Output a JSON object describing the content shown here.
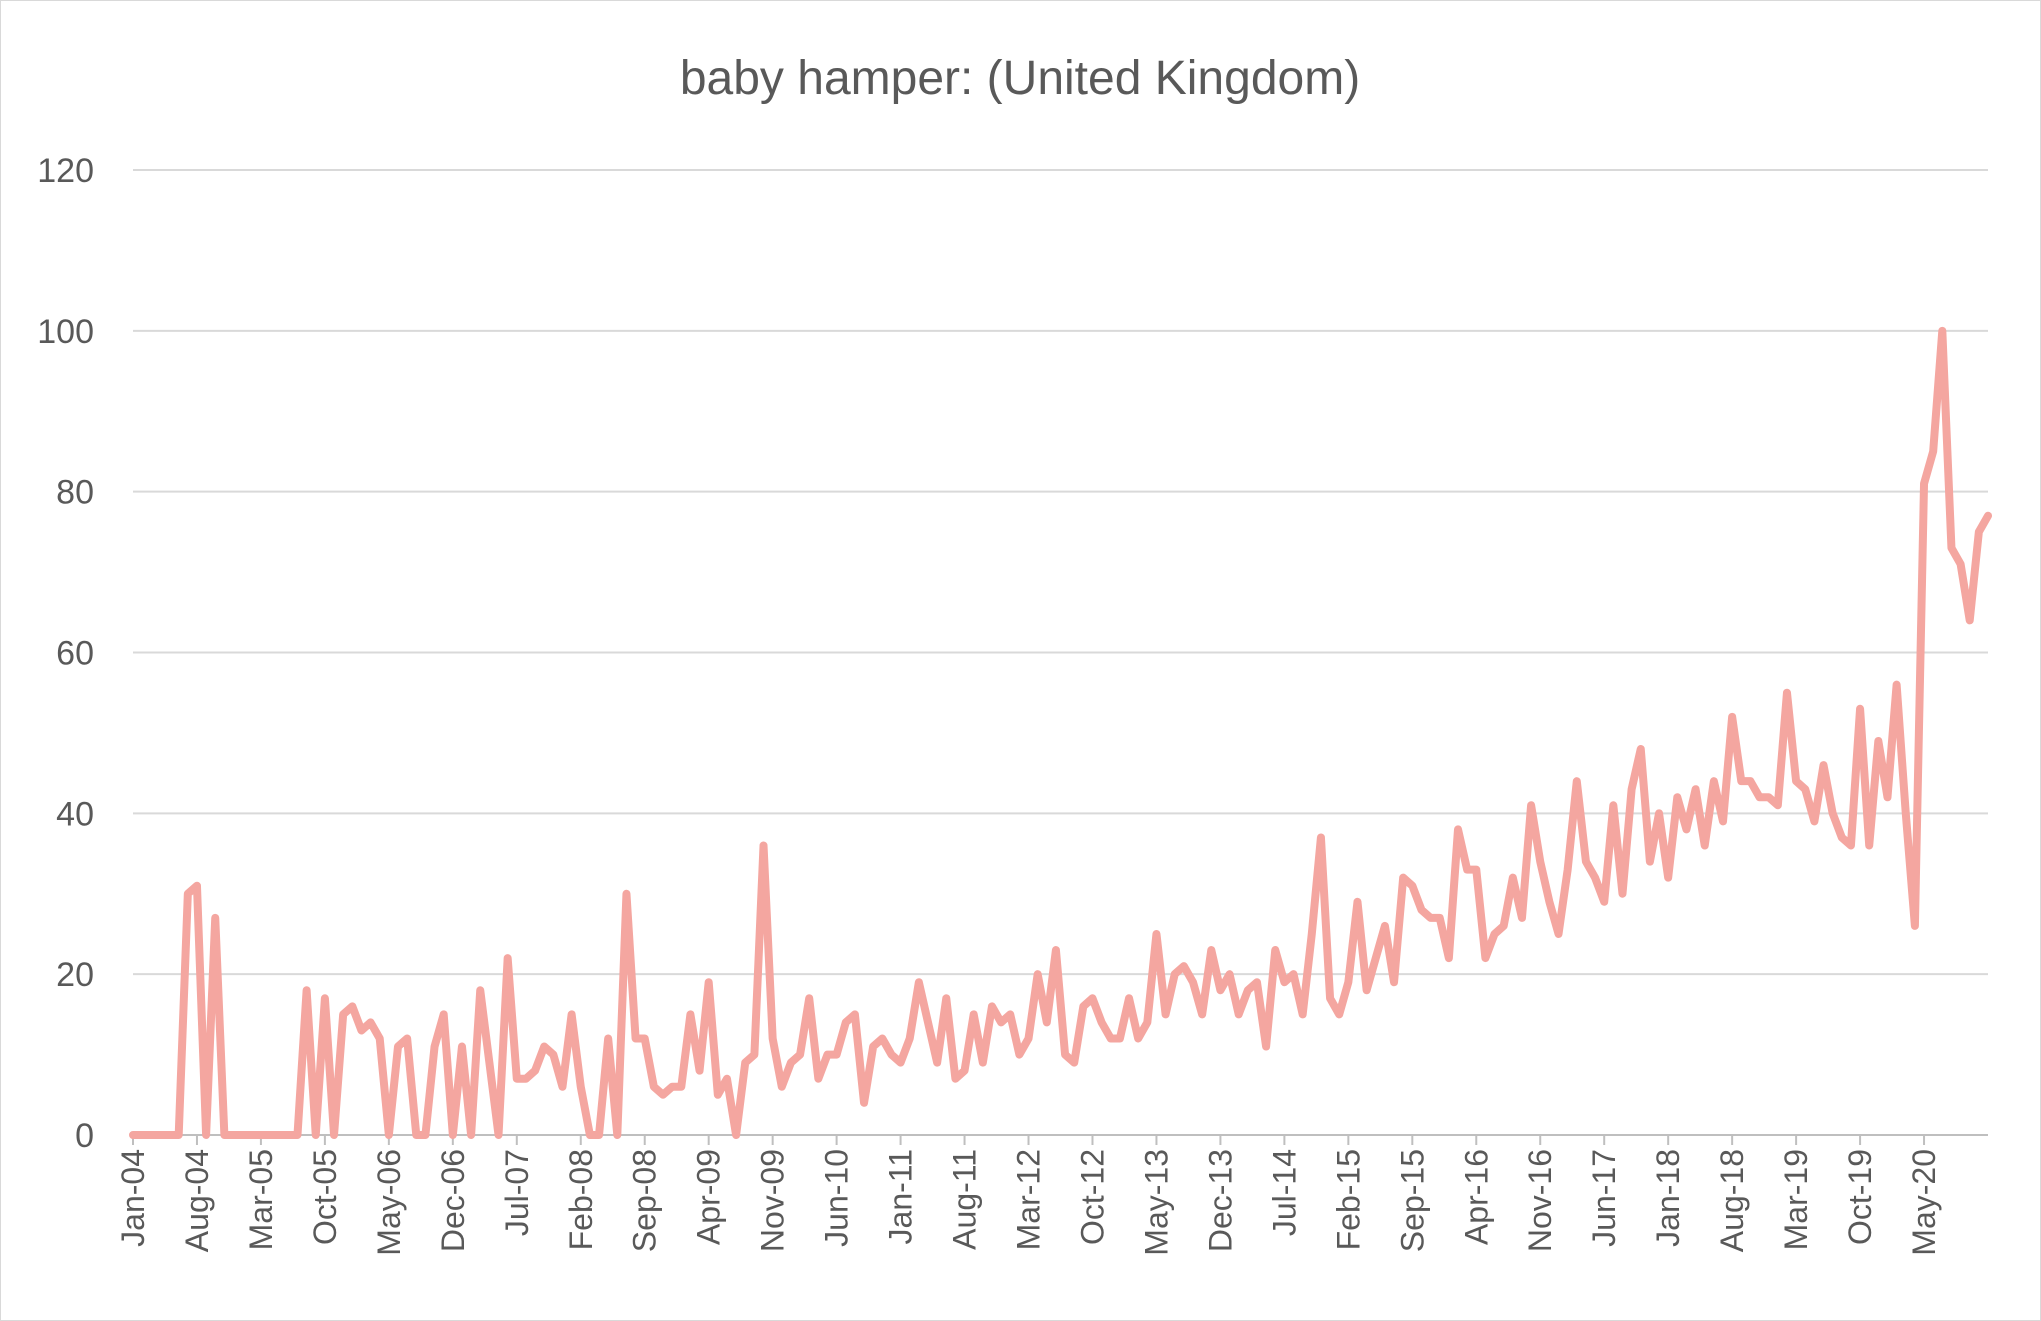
{
  "chart_data": {
    "type": "line",
    "title": "baby hamper: (United Kingdom)",
    "xlabel": "",
    "ylabel": "",
    "ylim": [
      0,
      120
    ],
    "yticks": [
      0,
      20,
      40,
      60,
      80,
      100,
      120
    ],
    "x_start": "Jan-04",
    "x_labels": [
      "Jan-04",
      "Aug-04",
      "Mar-05",
      "Oct-05",
      "May-06",
      "Dec-06",
      "Jul-07",
      "Feb-08",
      "Sep-08",
      "Apr-09",
      "Nov-09",
      "Jun-10",
      "Jan-11",
      "Aug-11",
      "Mar-12",
      "Oct-12",
      "May-13",
      "Dec-13",
      "Jul-14",
      "Feb-15",
      "Sep-15",
      "Apr-16",
      "Nov-16",
      "Jun-17",
      "Jan-18",
      "Aug-18",
      "Mar-19",
      "Oct-19",
      "May-20"
    ],
    "grid": true,
    "legend": "none",
    "series": [
      {
        "color": "#f4a6a0",
        "values": [
          0,
          0,
          0,
          0,
          0,
          0,
          30,
          31,
          0,
          27,
          0,
          0,
          0,
          0,
          0,
          0,
          0,
          0,
          0,
          18,
          0,
          17,
          0,
          15,
          16,
          13,
          14,
          12,
          0,
          11,
          12,
          0,
          0,
          11,
          15,
          0,
          11,
          0,
          18,
          9,
          0,
          22,
          7,
          7,
          8,
          11,
          10,
          6,
          15,
          6,
          0,
          0,
          12,
          0,
          30,
          12,
          12,
          6,
          5,
          6,
          6,
          15,
          8,
          19,
          5,
          7,
          0,
          9,
          10,
          36,
          12,
          6,
          9,
          10,
          17,
          7,
          10,
          10,
          14,
          15,
          4,
          11,
          12,
          10,
          9,
          12,
          19,
          14,
          9,
          17,
          7,
          8,
          15,
          9,
          16,
          14,
          15,
          10,
          12,
          20,
          14,
          23,
          10,
          9,
          16,
          17,
          14,
          12,
          12,
          17,
          12,
          14,
          25,
          15,
          20,
          21,
          19,
          15,
          23,
          18,
          20,
          15,
          18,
          19,
          11,
          23,
          19,
          20,
          15,
          25,
          37,
          17,
          15,
          19,
          29,
          18,
          22,
          26,
          19,
          32,
          31,
          28,
          27,
          27,
          22,
          38,
          33,
          33,
          22,
          25,
          26,
          32,
          27,
          41,
          34,
          29,
          25,
          33,
          44,
          34,
          32,
          29,
          41,
          30,
          43,
          48,
          34,
          40,
          32,
          42,
          38,
          43,
          36,
          44,
          39,
          52,
          44,
          44,
          42,
          42,
          41,
          55,
          44,
          43,
          39,
          46,
          40,
          37,
          36,
          53,
          36,
          49,
          42,
          56,
          40,
          26,
          81,
          85,
          100,
          73,
          71,
          64,
          75,
          77
        ]
      }
    ]
  }
}
